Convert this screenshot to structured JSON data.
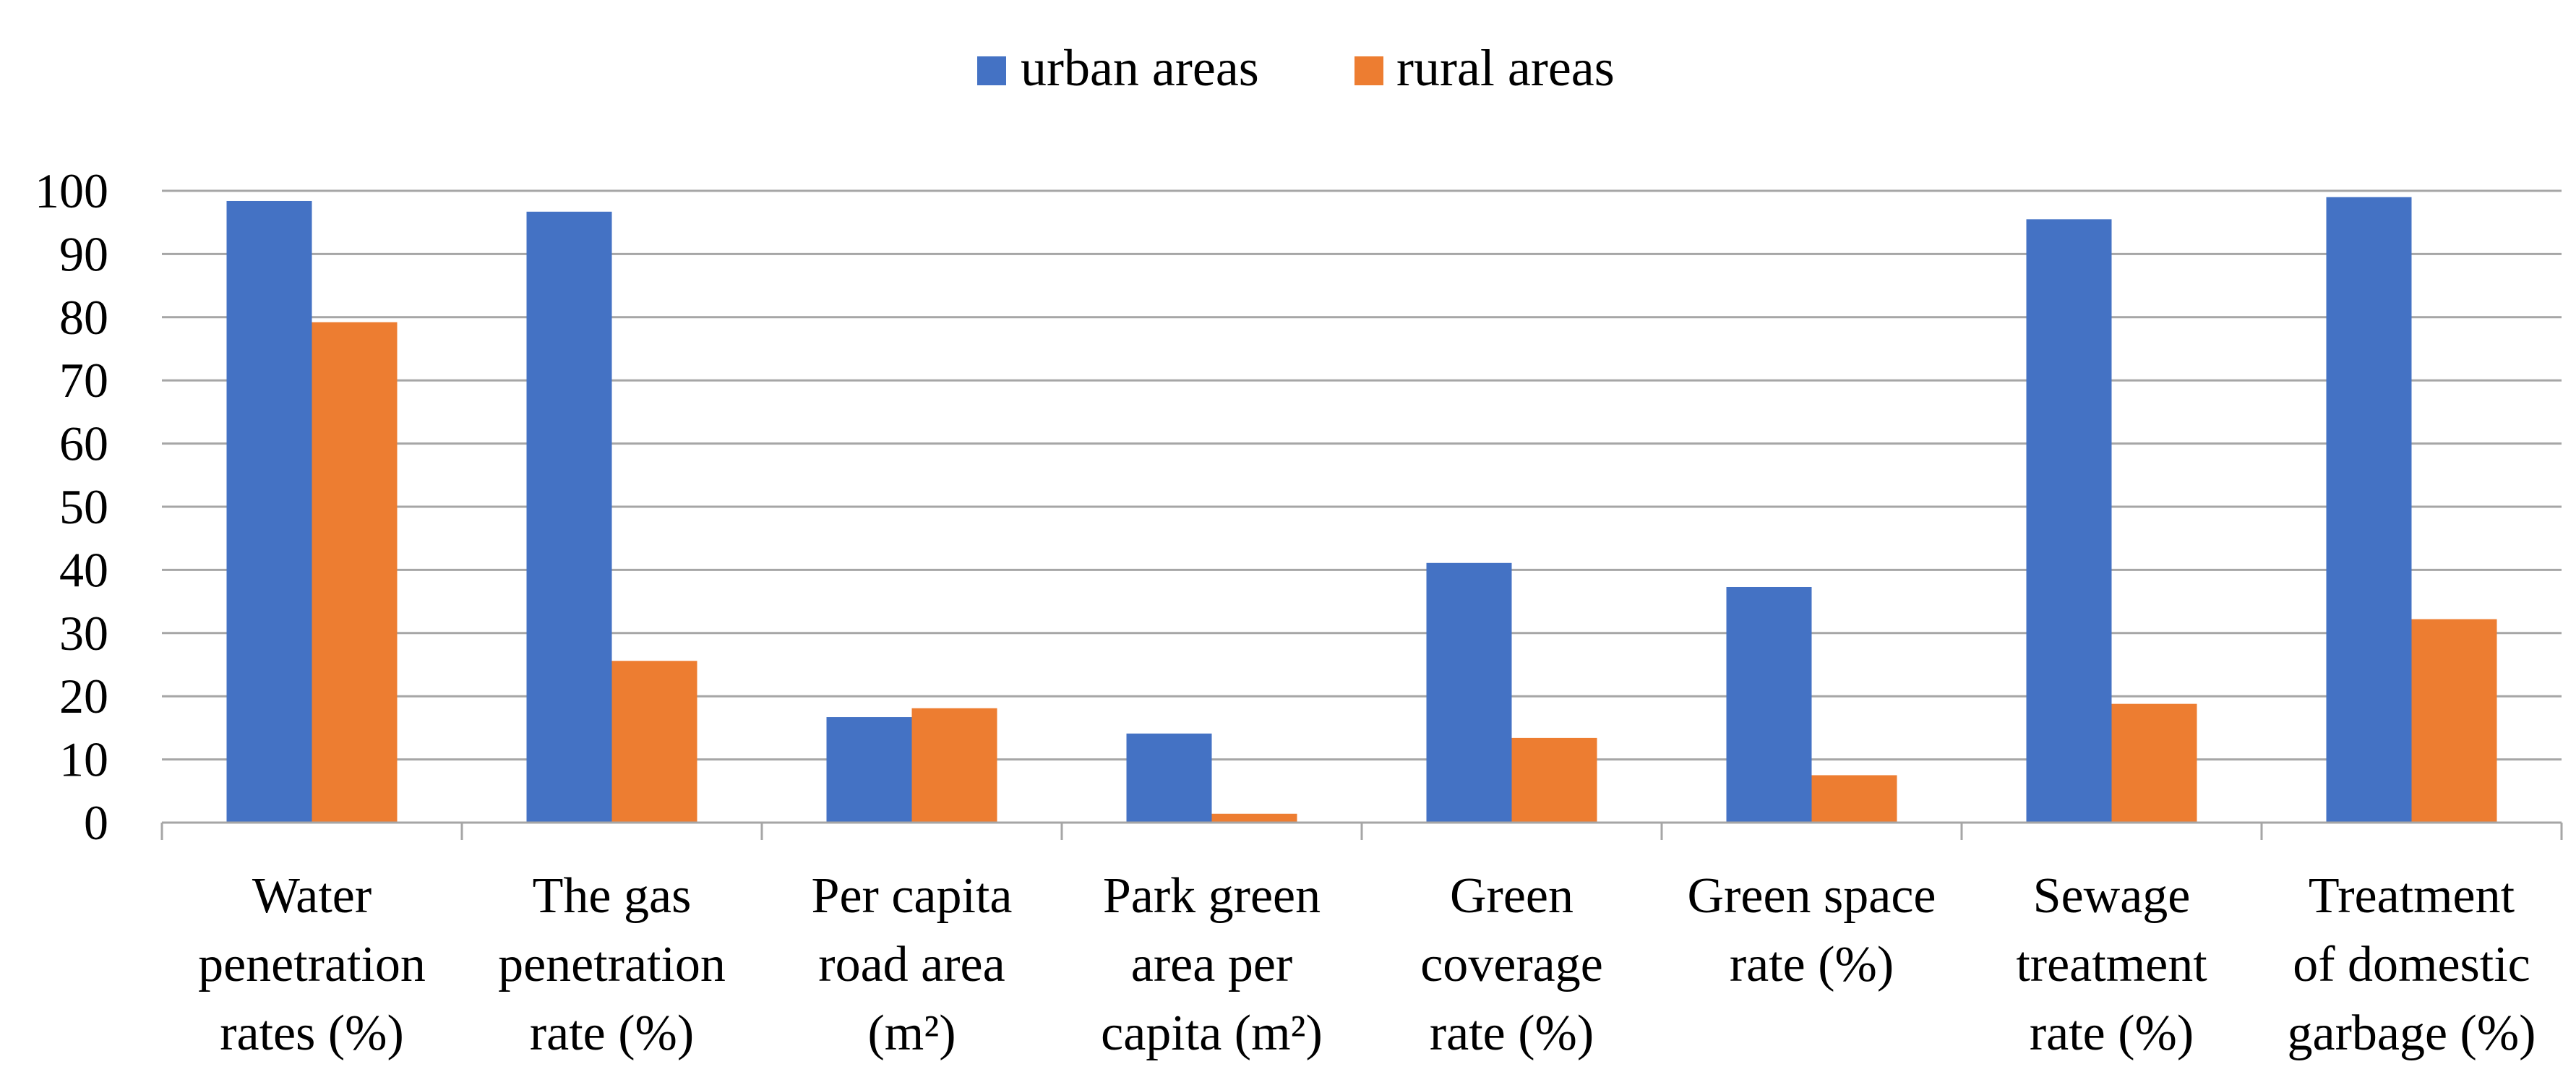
{
  "chart_data": {
    "type": "bar",
    "title": "",
    "xlabel": "",
    "ylabel": "",
    "ylim": [
      0,
      100
    ],
    "yticks": [
      0,
      10,
      20,
      30,
      40,
      50,
      60,
      70,
      80,
      90,
      100
    ],
    "grid": true,
    "legend_position": "top-center",
    "categories": [
      [
        "Water",
        "penetration",
        "rates (%)"
      ],
      [
        "The gas",
        "penetration",
        "rate (%)"
      ],
      [
        "Per capita",
        "road area",
        "(m²)"
      ],
      [
        "Park green",
        "area per",
        "capita (m²)"
      ],
      [
        "Green",
        "coverage",
        "rate (%)"
      ],
      [
        "Green space",
        "rate (%)"
      ],
      [
        "Sewage",
        "treatment",
        "rate (%)"
      ],
      [
        "Treatment",
        "of domestic",
        "garbage (%)"
      ]
    ],
    "series": [
      {
        "name": "urban areas",
        "color": "#4472C4",
        "values": [
          98.4,
          96.7,
          16.7,
          14.1,
          41.1,
          37.3,
          95.5,
          99.0
        ]
      },
      {
        "name": "rural areas",
        "color": "#ED7D31",
        "values": [
          79.2,
          25.6,
          18.1,
          1.4,
          13.4,
          7.5,
          18.8,
          32.2
        ]
      }
    ]
  }
}
